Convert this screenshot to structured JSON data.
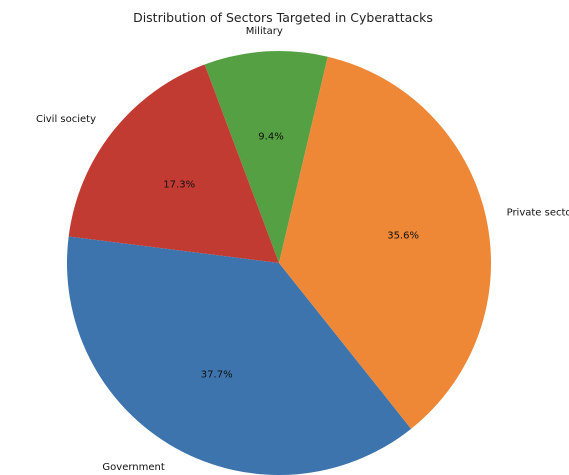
{
  "chart_data": {
    "type": "pie",
    "title": "Distribution of Sectors Targeted in Cyberattacks",
    "slices": [
      {
        "label": "Military",
        "value": 9.4,
        "pct_label": "9.4%",
        "color": "#55a042"
      },
      {
        "label": "Civil society",
        "value": 17.3,
        "pct_label": "17.3%",
        "color": "#c23b33"
      },
      {
        "label": "Government",
        "value": 37.7,
        "pct_label": "37.7%",
        "color": "#3d74ad"
      },
      {
        "label": "Private sector",
        "value": 35.6,
        "pct_label": "35.6%",
        "color": "#ee8736"
      }
    ],
    "start_angle_deg": 76.7,
    "direction": "counterclockwise",
    "legend": "none"
  }
}
